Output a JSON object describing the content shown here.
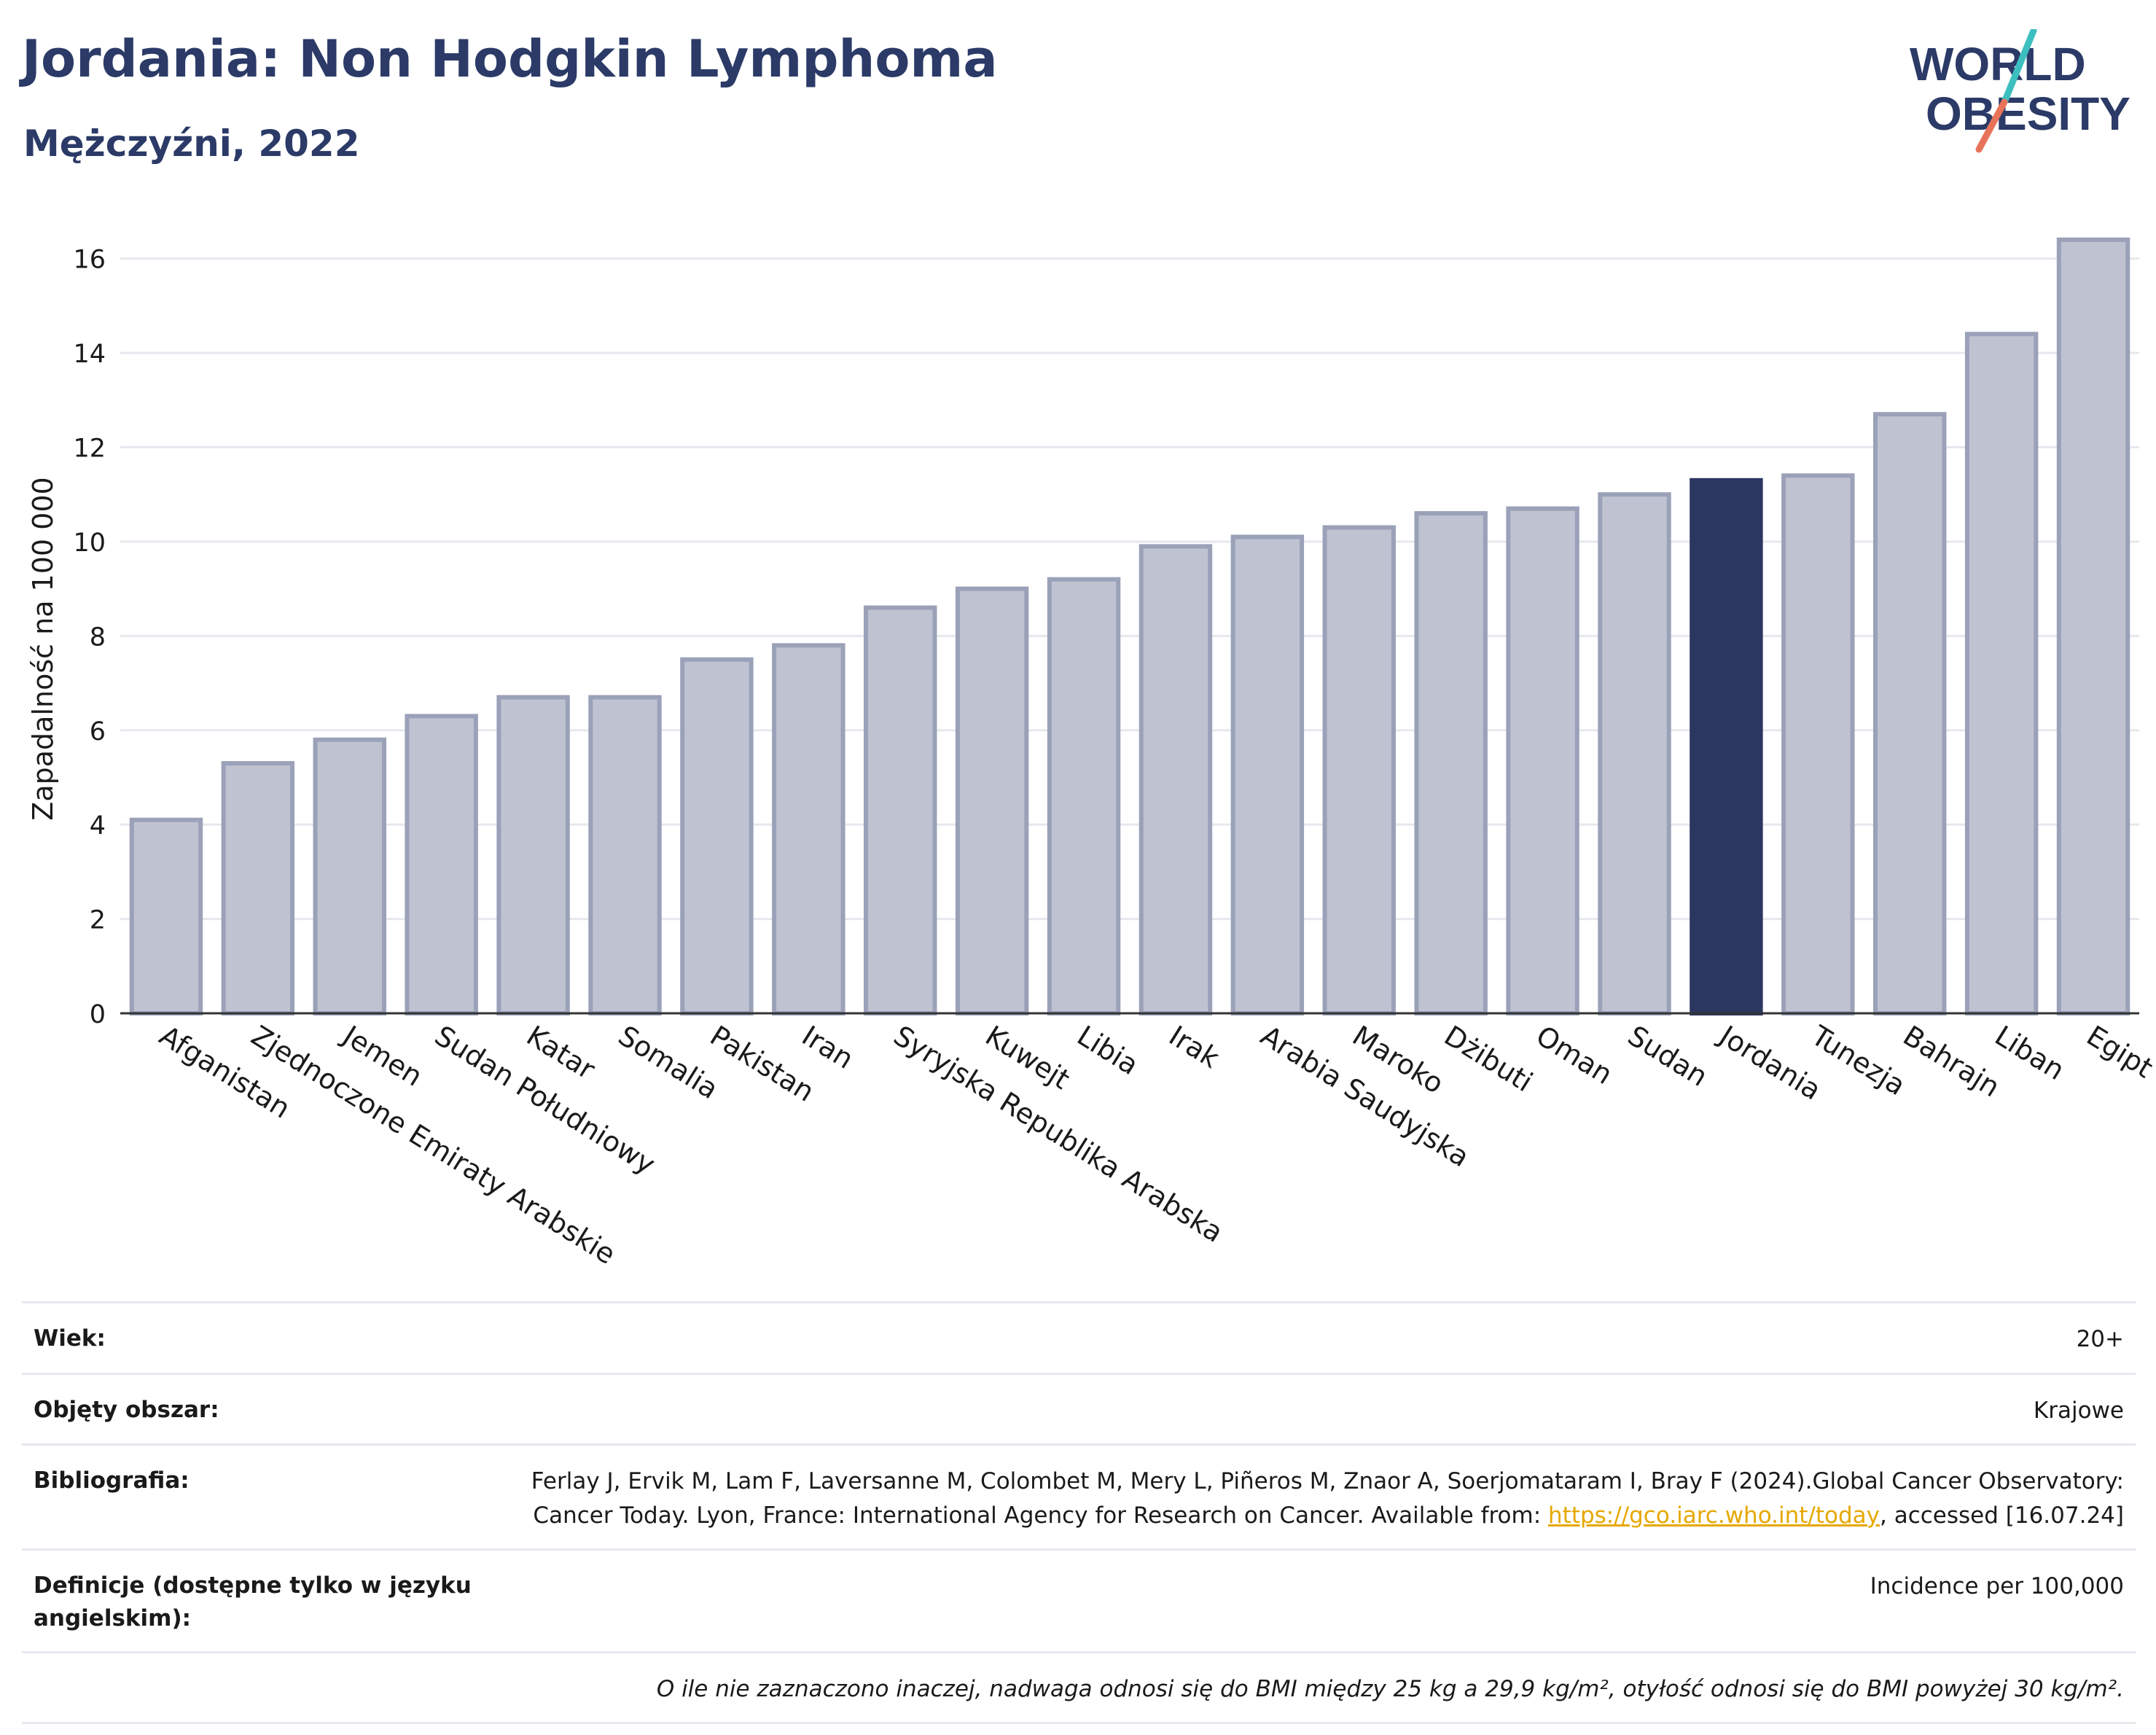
{
  "header": {
    "title": "Jordania: Non Hodgkin Lymphoma",
    "subtitle": "Mężczyźni, 2022"
  },
  "logo": {
    "line1": "WORLD",
    "line2": "OBESITY"
  },
  "colors": {
    "bar": "#bfc3d1",
    "bar_stroke": "#9aa1b8",
    "highlight": "#2b3661",
    "title": "#2b3a67",
    "grid": "#e6e8ee",
    "logo_teal": "#3dbfbf",
    "logo_coral": "#e8735a"
  },
  "chart_data": {
    "type": "bar",
    "title": "Jordania: Non Hodgkin Lymphoma",
    "subtitle": "Mężczyźni, 2022",
    "ylabel": "Zapadalność na 100 000",
    "xlabel": "",
    "ylim": [
      0,
      17
    ],
    "yticks": [
      0,
      2,
      4,
      6,
      8,
      10,
      12,
      14,
      16
    ],
    "grid": true,
    "highlight": "Jordania",
    "categories": [
      "Afganistan",
      "Zjednoczone Emiraty Arabskie",
      "Jemen",
      "Sudan Południowy",
      "Katar",
      "Somalia",
      "Pakistan",
      "Iran",
      "Syryjska Republika Arabska",
      "Kuwejt",
      "Libia",
      "Irak",
      "Arabia Saudyjska",
      "Maroko",
      "Dżibuti",
      "Oman",
      "Sudan",
      "Jordania",
      "Tunezja",
      "Bahrajn",
      "Liban",
      "Egipt"
    ],
    "values": [
      4.1,
      5.3,
      5.8,
      6.3,
      6.7,
      6.7,
      7.5,
      7.8,
      8.6,
      9.0,
      9.2,
      9.9,
      10.1,
      10.3,
      10.6,
      10.7,
      11.0,
      11.3,
      11.4,
      12.7,
      14.4,
      16.4
    ]
  },
  "info": {
    "age_label": "Wiek:",
    "age_value": "20+",
    "coverage_label": "Objęty obszar:",
    "coverage_value": "Krajowe",
    "bib_label": "Bibliografia:",
    "bib_text_1": "Ferlay J, Ervik M, Lam F, Laversanne M, Colombet M, Mery L, Piñeros M, Znaor A, Soerjomataram I, Bray F (2024).Global Cancer Observatory: Cancer Today. Lyon, France: International Agency for Research on Cancer. Available from: ",
    "bib_link": "https://gco.iarc.who.int/today",
    "bib_text_2": ", accessed [16.07.24]",
    "def_label": "Definicje (dostępne tylko w języku angielskim):",
    "def_value": "Incidence per 100,000",
    "note": "O ile nie zaznaczono inaczej, nadwaga odnosi się do BMI między 25 kg a 29,9 kg/m², otyłość odnosi się do BMI powyżej 30 kg/m²."
  }
}
